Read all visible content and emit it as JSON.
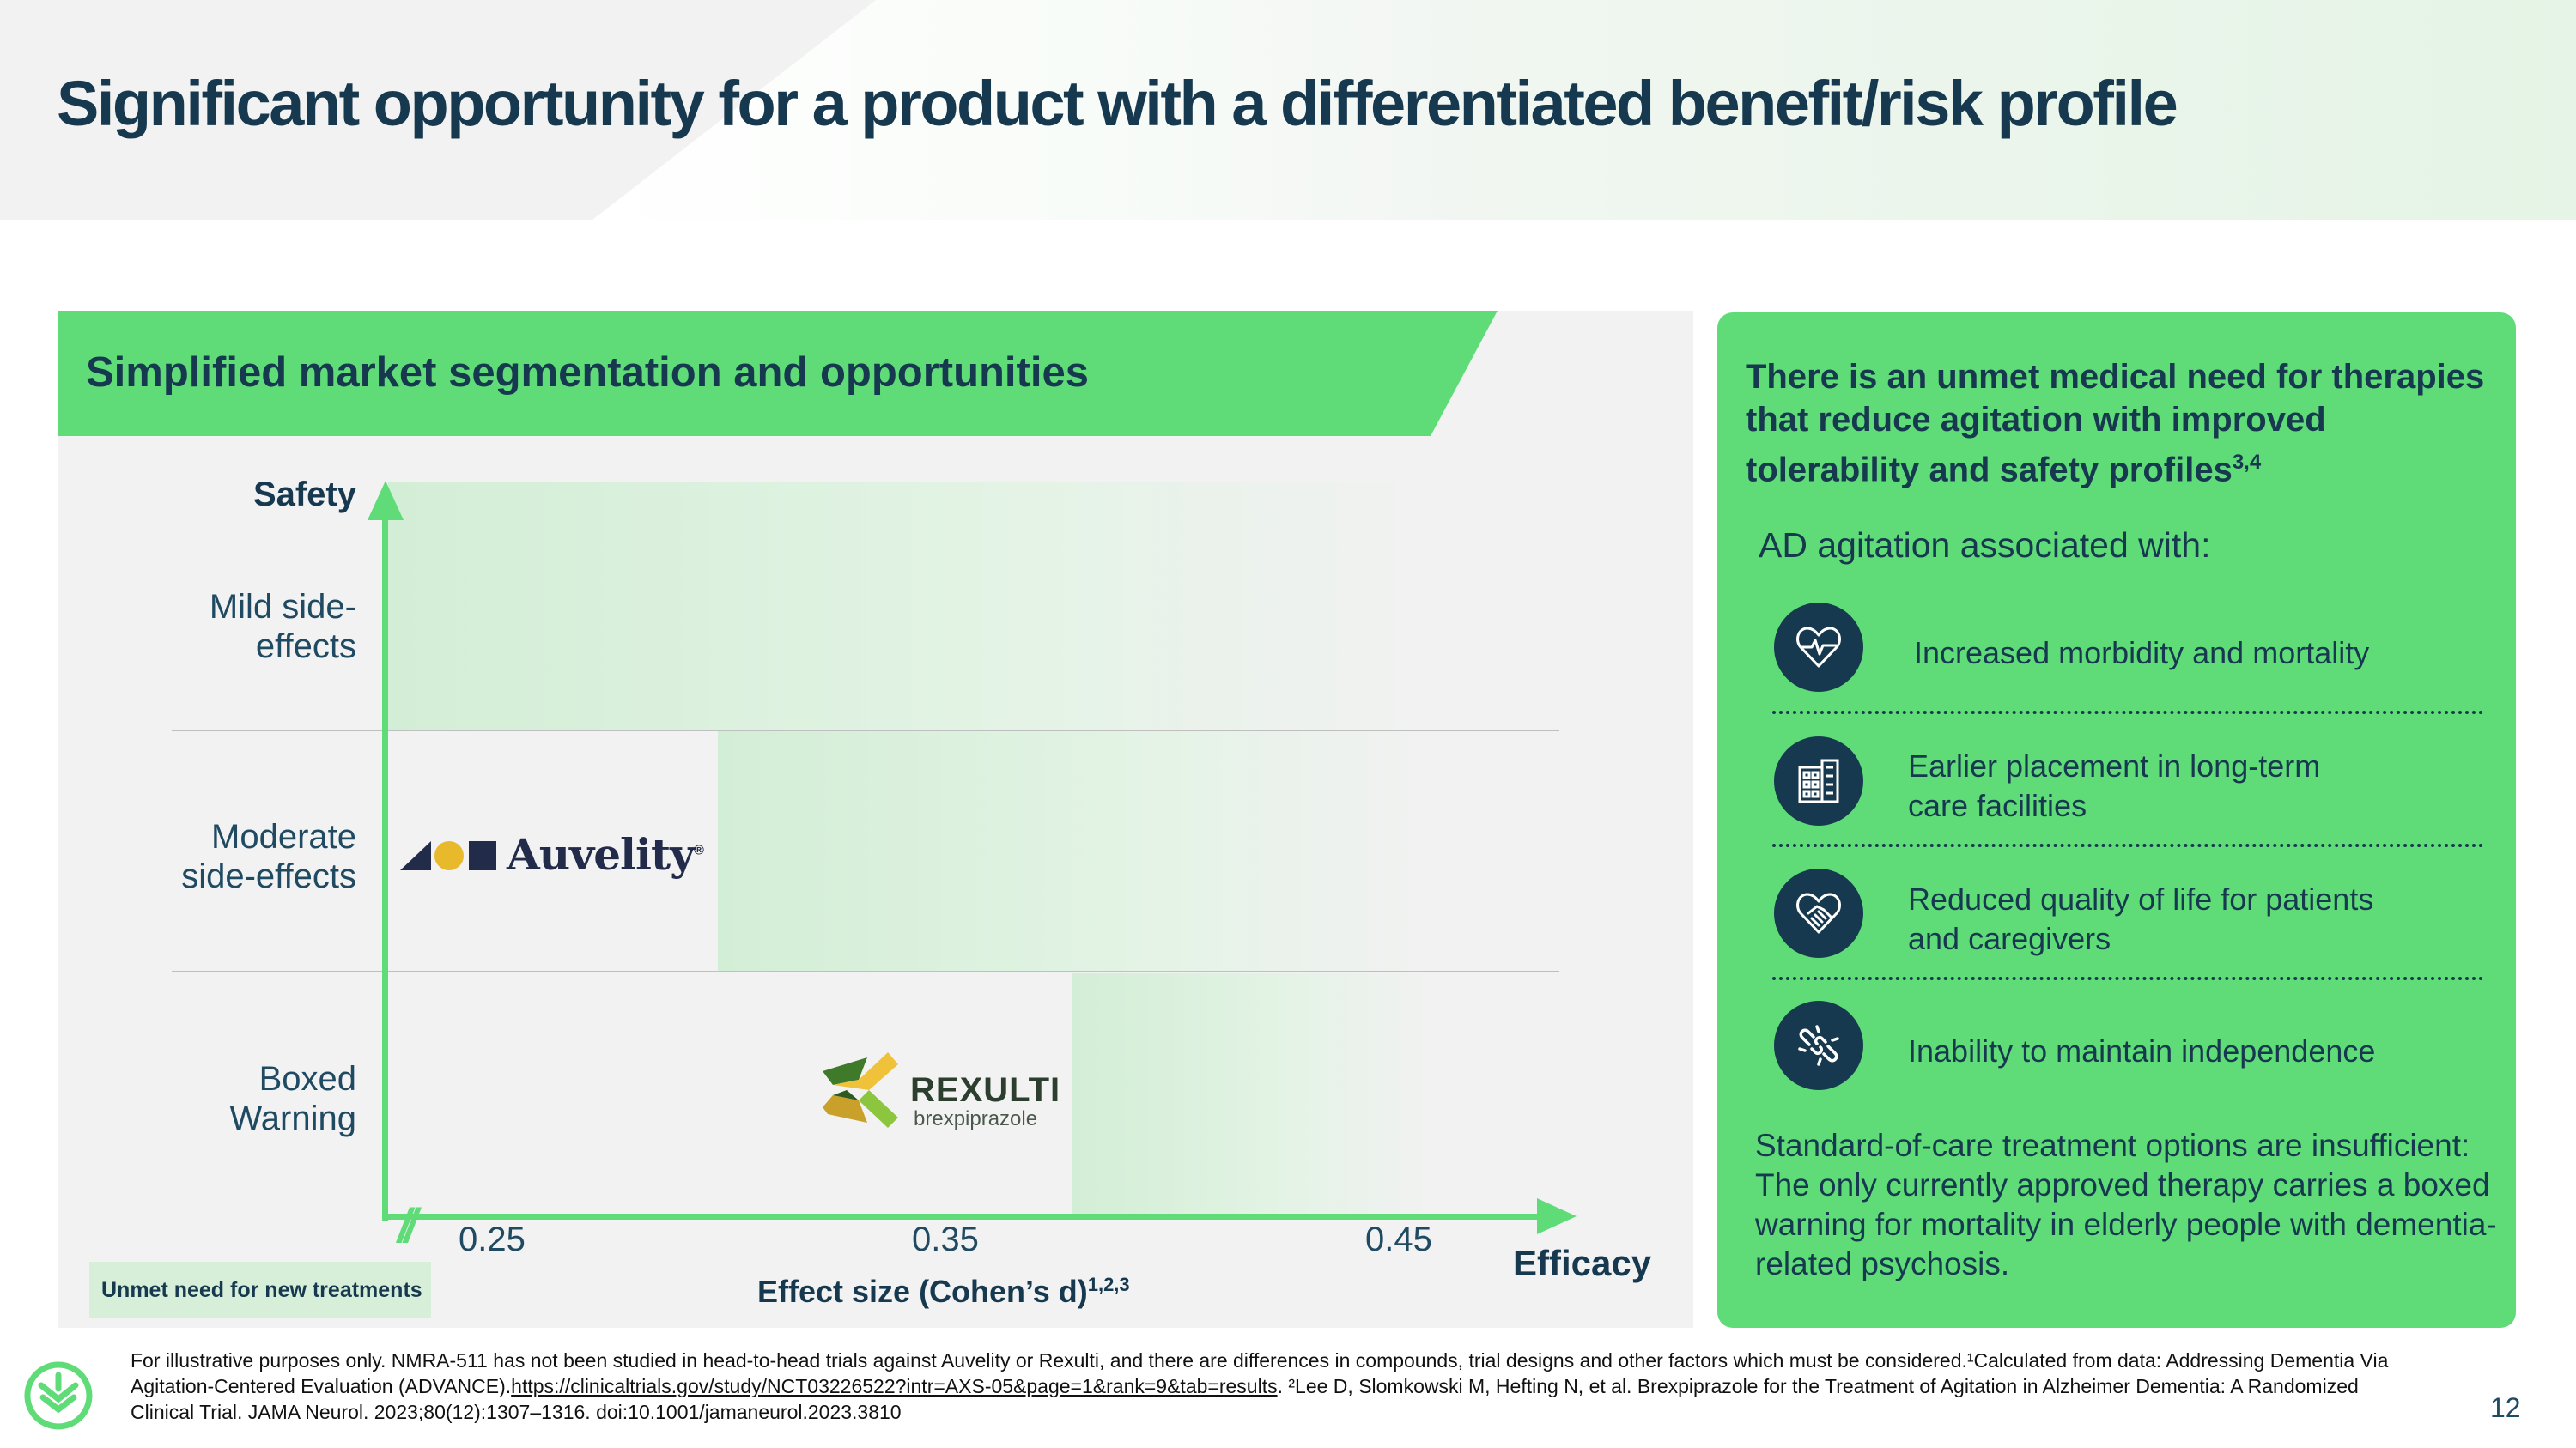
{
  "slide": {
    "title": "Significant opportunity for a product with a differentiated benefit/risk profile",
    "page_number": "12"
  },
  "segmentation": {
    "title": "Simplified market segmentation and opportunities",
    "y_axis_label": "Safety",
    "x_axis_label": "Efficacy",
    "x_axis_title": "Effect size (Cohen’s d)",
    "x_axis_title_refs": "1,2,3",
    "safety_levels": [
      "Mild side-effects",
      "Moderate side-effects",
      "Boxed Warning"
    ],
    "x_ticks": [
      "0.25",
      "0.35",
      "0.45"
    ],
    "legend_label": "Unmet need for new treatments",
    "products": {
      "auvelity": {
        "name": "Auvelity",
        "mark": "®"
      },
      "rexulti": {
        "name": "REXULTI",
        "generic": "brexpiprazole"
      }
    },
    "colors": {
      "accent": "#5fdc78",
      "unmet_band": "#d3eed6",
      "panel_bg": "#f2f2f2",
      "text": "#17394f"
    }
  },
  "unmet_need": {
    "heading": "There is an unmet medical need for therapies that reduce agitation with improved tolerability and safety profiles",
    "heading_refs": "3,4",
    "subheading": "AD agitation associated with:",
    "items": [
      {
        "icon": "heart-pulse-icon",
        "text": "Increased morbidity and mortality"
      },
      {
        "icon": "building-icon",
        "text": "Earlier placement in long-term care facilities"
      },
      {
        "icon": "handshake-icon",
        "text": "Reduced quality of life for patients and caregivers"
      },
      {
        "icon": "broken-link-icon",
        "text": "Inability to maintain independence"
      }
    ],
    "footer": "Standard-of-care treatment options are insufficient: The only currently approved therapy carries a boxed warning for mortality in elderly people with dementia-related psychosis."
  },
  "footnote": {
    "text_before_link": "For illustrative purposes only. NMRA-511 has not been studied in head-to-head trials against Auvelity or Rexulti, and there are differences in compounds, trial designs and other factors which must be considered.¹Calculated from data: Addressing Dementia Via Agitation-Centered Evaluation (ADVANCE).",
    "link": "https://clinicaltrials.gov/study/NCT03226522?intr=AXS-05&page=1&rank=9&tab=results",
    "text_after_link": ". ²Lee D, Slomkowski M, Hefting N, et al. Brexpiprazole for the Treatment of Agitation in Alzheimer Dementia: A Randomized Clinical Trial. JAMA Neurol. 2023;80(12):1307–1316. doi:10.1001/jamaneurol.2023.3810"
  }
}
